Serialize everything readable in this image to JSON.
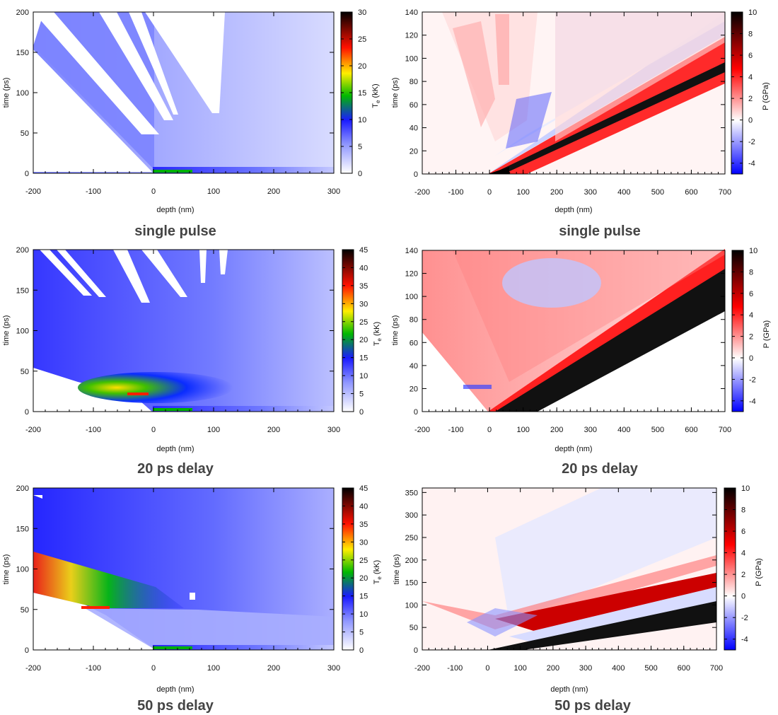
{
  "figure": {
    "panels": [
      {
        "caption": "single pulse",
        "quantity": "Te",
        "xlabel": "depth (nm)",
        "ylabel": "time (ps)",
        "cbar_label_main": "T",
        "cbar_label_sub": "e",
        "cbar_label_unit": " (kK)"
      },
      {
        "caption": "single pulse",
        "quantity": "P",
        "xlabel": "depth (nm)",
        "ylabel": "time (ps)",
        "cbar_label_main": "P (GPa)",
        "cbar_label_sub": "",
        "cbar_label_unit": ""
      },
      {
        "caption": "20 ps delay",
        "quantity": "Te",
        "xlabel": "depth (nm)",
        "ylabel": "time (ps)",
        "cbar_label_main": "T",
        "cbar_label_sub": "e",
        "cbar_label_unit": " (kK)"
      },
      {
        "caption": "20 ps delay",
        "quantity": "P",
        "xlabel": "depth (nm)",
        "ylabel": "time (ps)",
        "cbar_label_main": "P (GPa)",
        "cbar_label_sub": "",
        "cbar_label_unit": ""
      },
      {
        "caption": "50 ps delay",
        "quantity": "Te",
        "xlabel": "depth (nm)",
        "ylabel": "time (ps)",
        "cbar_label_main": "T",
        "cbar_label_sub": "e",
        "cbar_label_unit": " (kK)"
      },
      {
        "caption": "50 ps delay",
        "quantity": "P",
        "xlabel": "depth (nm)",
        "ylabel": "time (ps)",
        "cbar_label_main": "P (GPa)",
        "cbar_label_sub": "",
        "cbar_label_unit": ""
      }
    ]
  },
  "chart_data": [
    {
      "type": "heatmap",
      "title": "single pulse",
      "xlabel": "depth (nm)",
      "ylabel": "time (ps)",
      "xlim": [
        -200,
        300
      ],
      "ylim": [
        0,
        200
      ],
      "xticks": [
        "-200",
        "-100",
        "0",
        "100",
        "200",
        "300"
      ],
      "yticks": [
        "0",
        "50",
        "100",
        "150",
        "200"
      ],
      "colorbar": {
        "label": "Te (kK)",
        "range": [
          0,
          30
        ],
        "ticks": [
          "0",
          "5",
          "10",
          "15",
          "20",
          "25",
          "30"
        ],
        "colormap": "white-blue-green-yellow-red-black"
      }
    },
    {
      "type": "heatmap",
      "title": "single pulse",
      "xlabel": "depth (nm)",
      "ylabel": "time (ps)",
      "xlim": [
        -200,
        700
      ],
      "ylim": [
        0,
        140
      ],
      "xticks": [
        "-200",
        "-100",
        "0",
        "100",
        "200",
        "300",
        "400",
        "500",
        "600",
        "700"
      ],
      "yticks": [
        "0",
        "20",
        "40",
        "60",
        "80",
        "100",
        "120",
        "140"
      ],
      "colorbar": {
        "label": "P (GPa)",
        "range": [
          -5,
          10
        ],
        "ticks": [
          "-4",
          "-2",
          "0",
          "2",
          "4",
          "6",
          "8",
          "10"
        ],
        "colormap": "blue-white-red-black"
      }
    },
    {
      "type": "heatmap",
      "title": "20 ps delay",
      "xlabel": "depth (nm)",
      "ylabel": "time (ps)",
      "xlim": [
        -200,
        300
      ],
      "ylim": [
        0,
        200
      ],
      "xticks": [
        "-200",
        "-100",
        "0",
        "100",
        "200",
        "300"
      ],
      "yticks": [
        "0",
        "50",
        "100",
        "150",
        "200"
      ],
      "colorbar": {
        "label": "Te (kK)",
        "range": [
          0,
          45
        ],
        "ticks": [
          "0",
          "5",
          "10",
          "15",
          "20",
          "25",
          "30",
          "35",
          "40",
          "45"
        ],
        "colormap": "white-blue-green-yellow-red-black"
      }
    },
    {
      "type": "heatmap",
      "title": "20 ps delay",
      "xlabel": "depth (nm)",
      "ylabel": "time (ps)",
      "xlim": [
        -200,
        700
      ],
      "ylim": [
        0,
        140
      ],
      "xticks": [
        "-200",
        "-100",
        "0",
        "100",
        "200",
        "300",
        "400",
        "500",
        "600",
        "700"
      ],
      "yticks": [
        "0",
        "20",
        "40",
        "60",
        "80",
        "100",
        "120",
        "140"
      ],
      "colorbar": {
        "label": "P (GPa)",
        "range": [
          -5,
          10
        ],
        "ticks": [
          "-4",
          "-2",
          "0",
          "2",
          "4",
          "6",
          "8",
          "10"
        ],
        "colormap": "blue-white-red-black"
      }
    },
    {
      "type": "heatmap",
      "title": "50 ps delay",
      "xlabel": "depth (nm)",
      "ylabel": "time (ps)",
      "xlim": [
        -200,
        300
      ],
      "ylim": [
        0,
        200
      ],
      "xticks": [
        "-200",
        "-100",
        "0",
        "100",
        "200",
        "300"
      ],
      "yticks": [
        "0",
        "50",
        "100",
        "150",
        "200"
      ],
      "colorbar": {
        "label": "Te (kK)",
        "range": [
          0,
          45
        ],
        "ticks": [
          "0",
          "5",
          "10",
          "15",
          "20",
          "25",
          "30",
          "35",
          "40",
          "45"
        ],
        "colormap": "white-blue-green-yellow-red-black"
      }
    },
    {
      "type": "heatmap",
      "title": "50 ps delay",
      "xlabel": "depth (nm)",
      "ylabel": "time (ps)",
      "xlim": [
        -200,
        700
      ],
      "ylim": [
        0,
        360
      ],
      "xticks": [
        "-200",
        "-100",
        "0",
        "100",
        "200",
        "300",
        "400",
        "500",
        "600",
        "700"
      ],
      "yticks": [
        "0",
        "50",
        "100",
        "150",
        "200",
        "250",
        "300",
        "350"
      ],
      "colorbar": {
        "label": "P (GPa)",
        "range": [
          -5,
          10
        ],
        "ticks": [
          "-4",
          "-2",
          "0",
          "2",
          "4",
          "6",
          "8",
          "10"
        ],
        "colormap": "blue-white-red-black"
      }
    }
  ]
}
